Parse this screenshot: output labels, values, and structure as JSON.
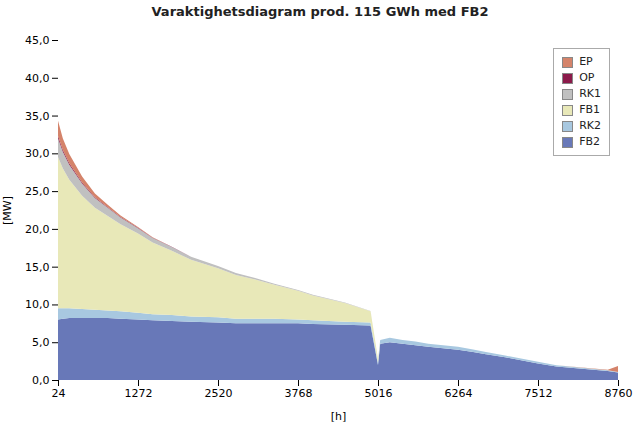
{
  "chart_data": {
    "type": "area",
    "stacked": true,
    "title": "Varaktighetsdiagram prod. 115 GWh med FB2",
    "xlabel": "[h]",
    "ylabel": "[MW]",
    "x": [
      24,
      100,
      200,
      400,
      600,
      800,
      1000,
      1272,
      1500,
      1800,
      2100,
      2520,
      2800,
      3100,
      3400,
      3768,
      4000,
      4500,
      4900,
      5016,
      5050,
      5200,
      5400,
      5600,
      5800,
      6264,
      6500,
      6700,
      7000,
      7512,
      7800,
      8600,
      8760
    ],
    "series": [
      {
        "name": "FB2",
        "color": "#6878b8",
        "values": [
          8.0,
          8.1,
          8.2,
          8.2,
          8.2,
          8.2,
          8.1,
          8.0,
          7.9,
          7.8,
          7.7,
          7.6,
          7.5,
          7.5,
          7.5,
          7.5,
          7.4,
          7.3,
          7.2,
          2.0,
          4.8,
          5.0,
          4.8,
          4.6,
          4.4,
          4.0,
          3.7,
          3.4,
          3.0,
          2.2,
          1.8,
          1.2,
          1.0
        ]
      },
      {
        "name": "RK2",
        "color": "#a8c8e0",
        "values": [
          1.5,
          1.4,
          1.3,
          1.2,
          1.1,
          1.0,
          1.0,
          0.9,
          0.8,
          0.8,
          0.7,
          0.7,
          0.6,
          0.6,
          0.6,
          0.5,
          0.5,
          0.4,
          0.4,
          0.3,
          0.5,
          0.6,
          0.5,
          0.5,
          0.4,
          0.4,
          0.35,
          0.3,
          0.25,
          0.2,
          0.15,
          0.1,
          0.05
        ]
      },
      {
        "name": "FB1",
        "color": "#e8e8b8",
        "values": [
          20.0,
          18.5,
          17.0,
          15.0,
          13.5,
          12.5,
          11.5,
          10.5,
          9.5,
          8.5,
          7.5,
          6.5,
          5.8,
          5.2,
          4.5,
          3.8,
          3.3,
          2.5,
          1.5,
          0.5,
          0.0,
          0.0,
          0.0,
          0.0,
          0.0,
          0.0,
          0.0,
          0.0,
          0.0,
          0.0,
          0.0,
          0.0,
          0.0
        ]
      },
      {
        "name": "RK1",
        "color": "#c0c0c0",
        "values": [
          2.5,
          2.2,
          2.0,
          1.6,
          1.3,
          1.1,
          0.9,
          0.7,
          0.6,
          0.5,
          0.4,
          0.3,
          0.25,
          0.2,
          0.15,
          0.1,
          0.08,
          0.05,
          0.02,
          0.0,
          0.0,
          0.0,
          0.0,
          0.0,
          0.0,
          0.0,
          0.0,
          0.0,
          0.0,
          0.0,
          0.0,
          0.0,
          0.0
        ]
      },
      {
        "name": "OP",
        "color": "#8b1a4a",
        "values": [
          0.3,
          0.25,
          0.2,
          0.15,
          0.1,
          0.08,
          0.06,
          0.04,
          0.03,
          0.02,
          0.01,
          0.0,
          0.0,
          0.0,
          0.0,
          0.0,
          0.0,
          0.0,
          0.0,
          0.0,
          0.0,
          0.0,
          0.0,
          0.0,
          0.0,
          0.0,
          0.0,
          0.0,
          0.0,
          0.0,
          0.0,
          0.0,
          0.0
        ]
      },
      {
        "name": "EP",
        "color": "#d4836a",
        "values": [
          2.0,
          1.5,
          1.2,
          0.8,
          0.5,
          0.3,
          0.2,
          0.1,
          0.05,
          0.02,
          0.0,
          0.0,
          0.0,
          0.0,
          0.0,
          0.0,
          0.0,
          0.0,
          0.0,
          0.0,
          0.0,
          0.0,
          0.0,
          0.0,
          0.0,
          0.0,
          0.0,
          0.0,
          0.0,
          0.0,
          0.0,
          0.05,
          0.8
        ]
      }
    ],
    "xlim": [
      24,
      8760
    ],
    "xticks": [
      24,
      1272,
      2520,
      3768,
      5016,
      6264,
      7512,
      8760
    ],
    "ylim": [
      0,
      45
    ],
    "yticks": [
      {
        "value": 0,
        "label": "0,0"
      },
      {
        "value": 5,
        "label": "5,0"
      },
      {
        "value": 10,
        "label": "10,0"
      },
      {
        "value": 15,
        "label": "15,0"
      },
      {
        "value": 20,
        "label": "20,0"
      },
      {
        "value": 25,
        "label": "25,0"
      },
      {
        "value": 30,
        "label": "30,0"
      },
      {
        "value": 35,
        "label": "35,0"
      },
      {
        "value": 40,
        "label": "40,0"
      },
      {
        "value": 45,
        "label": "45,0"
      }
    ],
    "grid": false,
    "legend": "upper right"
  }
}
